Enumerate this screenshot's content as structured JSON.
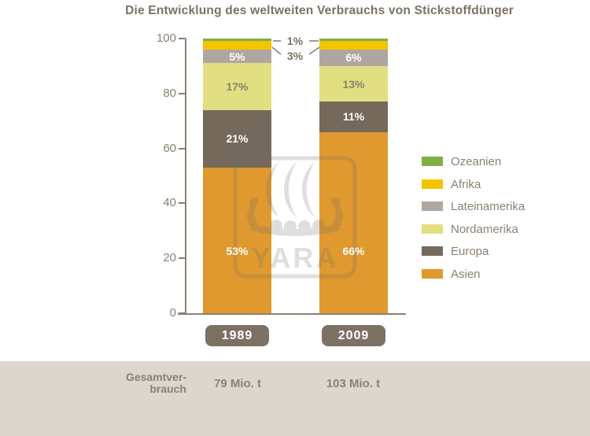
{
  "title": "Die Entwicklung des weltweiten Verbrauchs von Stickstoffdünger",
  "watermark": {
    "text": "YARA",
    "icon": "viking-ship-logo"
  },
  "chart_data": {
    "type": "bar",
    "stacked": true,
    "unit": "%",
    "title": "Die Entwicklung des weltweiten Verbrauchs von Stickstoffdünger",
    "categories": [
      "1989",
      "2009"
    ],
    "series": [
      {
        "name": "Asien",
        "color": "#E0992E",
        "label_color": "#FFFFFF",
        "values": [
          53,
          66
        ]
      },
      {
        "name": "Europa",
        "color": "#75695B",
        "label_color": "#FFFFFF",
        "values": [
          21,
          11
        ]
      },
      {
        "name": "Nordamerika",
        "color": "#E2DF82",
        "label_color": "#8B8072",
        "values": [
          17,
          13
        ]
      },
      {
        "name": "Lateinamerika",
        "color": "#AFA79F",
        "label_color": "#FFFFFF",
        "values": [
          5,
          6
        ]
      },
      {
        "name": "Afrika",
        "color": "#F2C500",
        "label_color": "#7C7163",
        "values": [
          3,
          3
        ]
      },
      {
        "name": "Ozeanien",
        "color": "#82AE46",
        "label_color": "#7C7163",
        "values": [
          1,
          1
        ]
      }
    ],
    "callout_labels": [
      "1%",
      "3%"
    ],
    "y_axis": {
      "min": 0,
      "max": 100,
      "ticks": [
        0,
        20,
        40,
        60,
        80,
        100
      ]
    },
    "legend": {
      "position": "right",
      "order": [
        "Ozeanien",
        "Afrika",
        "Lateinamerika",
        "Nordamerika",
        "Europa",
        "Asien"
      ]
    },
    "totals": {
      "label_lines": [
        "Gesamtver-",
        "brauch"
      ],
      "values": [
        "79 Mio. t",
        "103 Mio. t"
      ]
    },
    "grid": false
  },
  "colors": {
    "axis": "#8B8072",
    "title_text": "#7C7163",
    "year_pill_bg": "#7C7163",
    "strip_bg": "#DBD7CF"
  }
}
